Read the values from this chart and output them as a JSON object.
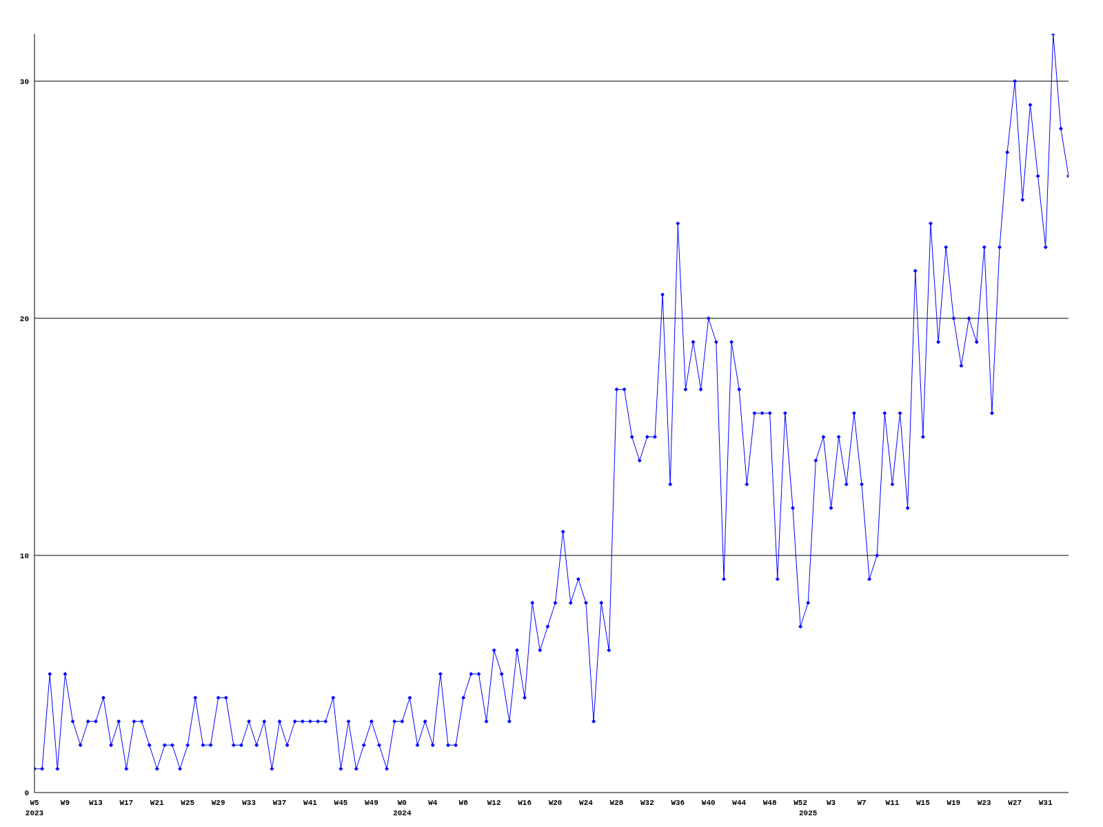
{
  "chart_data": {
    "type": "line",
    "categories": [
      "W5\n2023",
      null,
      null,
      null,
      "W9",
      null,
      null,
      null,
      "W13",
      null,
      null,
      null,
      "W17",
      null,
      null,
      null,
      "W21",
      null,
      null,
      null,
      "W25",
      null,
      null,
      null,
      "W29",
      null,
      null,
      null,
      "W33",
      null,
      null,
      null,
      "W37",
      null,
      null,
      null,
      "W41",
      null,
      null,
      null,
      "W45",
      null,
      null,
      null,
      "W49",
      null,
      null,
      null,
      "W0\n2024",
      null,
      null,
      null,
      "W4",
      null,
      null,
      null,
      "W8",
      null,
      null,
      null,
      "W12",
      null,
      null,
      null,
      "W16",
      null,
      null,
      null,
      "W20",
      null,
      null,
      null,
      "W24",
      null,
      null,
      null,
      "W28",
      null,
      null,
      null,
      "W32",
      null,
      null,
      null,
      "W36",
      null,
      null,
      null,
      "W40",
      null,
      null,
      null,
      "W44",
      null,
      null,
      null,
      "W48",
      null,
      null,
      null,
      "W52",
      "\n2025",
      null,
      null,
      "W3",
      null,
      null,
      null,
      "W7",
      null,
      null,
      null,
      "W11",
      null,
      null,
      null,
      "W15",
      null,
      null,
      null,
      "W19",
      null,
      null,
      null,
      "W23",
      null,
      null,
      null,
      "W27",
      null,
      null,
      null,
      "W31",
      null,
      null,
      null
    ],
    "series": [
      {
        "color": "#0000ff",
        "values": [
          1,
          1,
          5,
          1,
          5,
          3,
          2,
          3,
          3,
          4,
          2,
          3,
          1,
          3,
          3,
          2,
          1,
          2,
          2,
          1,
          2,
          4,
          2,
          2,
          4,
          4,
          2,
          2,
          3,
          2,
          3,
          1,
          3,
          2,
          3,
          3,
          3,
          3,
          3,
          4,
          1,
          3,
          1,
          2,
          3,
          2,
          1,
          3,
          3,
          4,
          2,
          3,
          2,
          5,
          2,
          2,
          4,
          5,
          5,
          3,
          6,
          5,
          3,
          6,
          4,
          8,
          6,
          7,
          8,
          11,
          8,
          9,
          8,
          3,
          8,
          6,
          17,
          17,
          15,
          14,
          15,
          15,
          21,
          13,
          24,
          17,
          19,
          17,
          20,
          19,
          9,
          19,
          17,
          13,
          16,
          16,
          16,
          9,
          16,
          12,
          7,
          8,
          14,
          15,
          12,
          15,
          13,
          16,
          13,
          9,
          10,
          16,
          13,
          16,
          12,
          22,
          15,
          24,
          19,
          23,
          20,
          18,
          20,
          19,
          23,
          16,
          23,
          27,
          30,
          25,
          29,
          26,
          23,
          32,
          28,
          26
        ]
      }
    ],
    "ylim": [
      0,
      32
    ],
    "yticks": [
      0,
      10,
      20,
      30
    ],
    "grid": "y",
    "marker": "diamond",
    "line_style": "solid"
  }
}
